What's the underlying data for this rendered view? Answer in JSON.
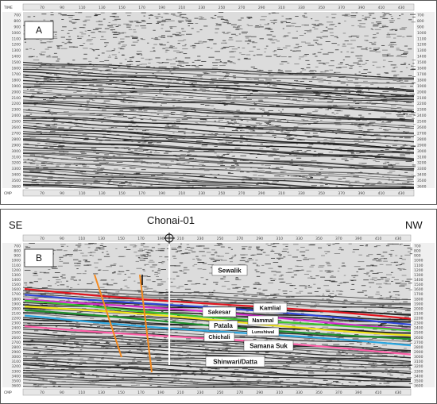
{
  "panel_a": {
    "label": "A",
    "time_axis_label": "TIME",
    "cmp_axis_label": "CMP",
    "time_ticks": [
      "700",
      "800",
      "900",
      "1000",
      "1100",
      "1200",
      "1300",
      "1400",
      "1500",
      "1600",
      "1700",
      "1800",
      "1900",
      "2000",
      "2100",
      "2200",
      "2300",
      "2400",
      "2500",
      "2600",
      "2700",
      "2800",
      "2900",
      "3000",
      "3100",
      "3200",
      "3300",
      "3400",
      "3500",
      "3600"
    ],
    "cmp_ticks": [
      "70",
      "90",
      "110",
      "130",
      "150",
      "170",
      "190",
      "210",
      "230",
      "250",
      "270",
      "290",
      "310",
      "330",
      "350",
      "370",
      "390",
      "410",
      "430"
    ]
  },
  "panel_b": {
    "label": "B",
    "left_direction": "SE",
    "right_direction": "NW",
    "well_name": "Chonai-01",
    "cmp_axis_label": "CMP",
    "time_ticks": [
      "700",
      "800",
      "900",
      "1000",
      "1100",
      "1200",
      "1300",
      "1400",
      "1500",
      "1600",
      "1700",
      "1800",
      "1900",
      "2000",
      "2100",
      "2200",
      "2300",
      "2400",
      "2500",
      "2600",
      "2700",
      "2800",
      "2900",
      "3000",
      "3100",
      "3200",
      "3300",
      "3400",
      "3500",
      "3600"
    ],
    "cmp_ticks": [
      "70",
      "90",
      "110",
      "130",
      "150",
      "170",
      "190",
      "210",
      "230",
      "250",
      "270",
      "290",
      "310",
      "330",
      "350",
      "370",
      "390",
      "410",
      "430"
    ],
    "formations": [
      {
        "name": "Sewalik",
        "color": "#000000"
      },
      {
        "name": "Kamlial",
        "color": "#e0141e"
      },
      {
        "name": "Sakesar",
        "color": "#2f47d8"
      },
      {
        "name": "Nammal",
        "color": "#d52fd0"
      },
      {
        "name": "Patala",
        "color": "#f2e417"
      },
      {
        "name": "Lumshiwal",
        "color": "#1f8f2f"
      },
      {
        "name": "Chichali",
        "color": "#3cc42e"
      },
      {
        "name": "Samana Suk",
        "color": "#2aa6e0"
      },
      {
        "name": "Shinwari/Datta",
        "color": "#ff5fa8"
      }
    ],
    "fault_color": "#f58a1f",
    "well_color": "#ffffff"
  }
}
